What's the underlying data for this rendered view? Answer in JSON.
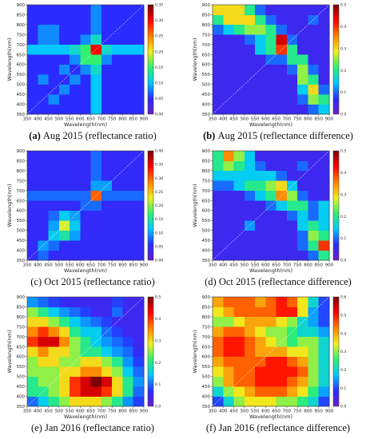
{
  "chart_data": [
    {
      "type": "heatmap",
      "panel_label": "(a)",
      "label_bold": true,
      "caption": "Aug 2015 (reflectance ratio)",
      "x_label": "Wavelength(nm)",
      "y_label": "Wavelength(nm)",
      "xlim": [
        350,
        900
      ],
      "ylim": [
        350,
        900
      ],
      "xticks": [
        350,
        400,
        450,
        500,
        550,
        600,
        650,
        700,
        750,
        800,
        850,
        900
      ],
      "yticks": [
        350,
        400,
        450,
        500,
        550,
        600,
        650,
        700,
        750,
        800,
        850,
        900
      ],
      "zlim": [
        0,
        0.35
      ],
      "zticks": [
        {
          "value": 0,
          "label": "0.00"
        },
        0.05,
        {
          "value": 0.1,
          "label": "0.10"
        },
        0.15,
        {
          "value": 0.2,
          "label": "0.20"
        },
        0.25,
        {
          "value": 0.3,
          "label": "0.30"
        },
        0.35
      ],
      "colormap": [
        "#6a1ec8",
        "#2a2cff",
        "#00c8ff",
        "#30f070",
        "#f0f020",
        "#ff8000",
        "#ff0000",
        "#7a0000"
      ],
      "z": [
        [
          0.05,
          0.05,
          0.05,
          0.05,
          0.05,
          0.05,
          0.1,
          0.05,
          0.05,
          0.05,
          0.05
        ],
        [
          0.05,
          0.05,
          0.08,
          0.05,
          0.05,
          0.05,
          0.1,
          0.05,
          0.05,
          0.05,
          0.05
        ],
        [
          0.05,
          0.05,
          0.05,
          0.08,
          0.05,
          0.05,
          0.1,
          0.05,
          0.05,
          0.05,
          0.05
        ],
        [
          0.05,
          0.08,
          0.05,
          0.05,
          0.08,
          0.05,
          0.1,
          0.05,
          0.05,
          0.05,
          0.05
        ],
        [
          0.05,
          0.05,
          0.05,
          0.08,
          0.05,
          0.08,
          0.12,
          0.05,
          0.05,
          0.05,
          0.05
        ],
        [
          0.05,
          0.05,
          0.05,
          0.05,
          0.08,
          0.15,
          0.15,
          0.08,
          0.05,
          0.05,
          0.05
        ],
        [
          0.1,
          0.1,
          0.1,
          0.1,
          0.12,
          0.15,
          0.3,
          0.12,
          0.1,
          0.1,
          0.1
        ],
        [
          0.05,
          0.08,
          0.08,
          0.05,
          0.05,
          0.08,
          0.12,
          0.05,
          0.05,
          0.05,
          0.05
        ],
        [
          0.05,
          0.08,
          0.08,
          0.05,
          0.05,
          0.05,
          0.08,
          0.05,
          0.05,
          0.05,
          0.05
        ],
        [
          0.05,
          0.05,
          0.05,
          0.05,
          0.05,
          0.05,
          0.08,
          0.05,
          0.05,
          0.05,
          0.05
        ],
        [
          0.05,
          0.05,
          0.05,
          0.05,
          0.05,
          0.05,
          0.08,
          0.05,
          0.05,
          0.05,
          0.05
        ]
      ]
    },
    {
      "type": "heatmap",
      "panel_label": "(b)",
      "label_bold": true,
      "caption": "Aug 2015 (reflectance difference)",
      "x_label": "Wavelength(nm)",
      "y_label": "Wavelength(nm)",
      "xlim": [
        350,
        900
      ],
      "ylim": [
        350,
        900
      ],
      "xticks": [
        350,
        400,
        450,
        500,
        550,
        600,
        650,
        700,
        750,
        800,
        850,
        900
      ],
      "yticks": [
        350,
        400,
        450,
        500,
        550,
        600,
        650,
        700,
        750,
        800,
        850,
        900
      ],
      "zlim": [
        0,
        0.5
      ],
      "zticks": [
        {
          "value": 0,
          "label": "0.0"
        },
        0.1,
        0.2,
        0.3,
        0.4,
        0.5
      ],
      "colormap": [
        "#6a1ec8",
        "#2a2cff",
        "#00c8ff",
        "#30f070",
        "#f0f020",
        "#ff8000",
        "#ff0000",
        "#7a0000"
      ],
      "z": [
        [
          0.05,
          0.05,
          0.05,
          0.05,
          0.05,
          0.05,
          0.05,
          0.05,
          0.05,
          0.1,
          0.15
        ],
        [
          0.05,
          0.05,
          0.05,
          0.05,
          0.05,
          0.05,
          0.05,
          0.05,
          0.1,
          0.25,
          0.2
        ],
        [
          0.05,
          0.05,
          0.05,
          0.05,
          0.05,
          0.05,
          0.05,
          0.05,
          0.15,
          0.3,
          0.1
        ],
        [
          0.05,
          0.05,
          0.05,
          0.05,
          0.05,
          0.05,
          0.05,
          0.05,
          0.25,
          0.2,
          0.05
        ],
        [
          0.05,
          0.05,
          0.05,
          0.05,
          0.05,
          0.05,
          0.05,
          0.1,
          0.25,
          0.1,
          0.05
        ],
        [
          0.05,
          0.05,
          0.05,
          0.05,
          0.05,
          0.1,
          0.1,
          0.2,
          0.2,
          0.05,
          0.05
        ],
        [
          0.05,
          0.05,
          0.05,
          0.05,
          0.15,
          0.2,
          0.4,
          0.2,
          0.05,
          0.05,
          0.05
        ],
        [
          0.05,
          0.05,
          0.05,
          0.1,
          0.15,
          0.2,
          0.45,
          0.1,
          0.05,
          0.05,
          0.05
        ],
        [
          0.1,
          0.15,
          0.2,
          0.25,
          0.25,
          0.2,
          0.1,
          0.05,
          0.05,
          0.05,
          0.05
        ],
        [
          0.2,
          0.3,
          0.3,
          0.3,
          0.2,
          0.1,
          0.05,
          0.05,
          0.05,
          0.1,
          0.05
        ],
        [
          0.3,
          0.3,
          0.3,
          0.2,
          0.1,
          0.05,
          0.05,
          0.05,
          0.05,
          0.05,
          0.05
        ]
      ]
    },
    {
      "type": "heatmap",
      "panel_label": "(c)",
      "label_bold": false,
      "caption": "Oct 2015 (reflectance ratio)",
      "x_label": "Wavelength(nm)",
      "y_label": "Wavelength(nm)",
      "xlim": [
        350,
        900
      ],
      "ylim": [
        350,
        900
      ],
      "xticks": [
        350,
        400,
        450,
        500,
        550,
        600,
        650,
        700,
        750,
        800,
        850,
        900
      ],
      "yticks": [
        350,
        400,
        450,
        500,
        550,
        600,
        650,
        700,
        750,
        800,
        850,
        900
      ],
      "zlim": [
        0,
        0.4
      ],
      "zticks": [
        {
          "value": 0,
          "label": "0.00"
        },
        0.05,
        {
          "value": 0.1,
          "label": "0.10"
        },
        0.15,
        {
          "value": 0.2,
          "label": "0.20"
        },
        0.25,
        {
          "value": 0.3,
          "label": "0.30"
        },
        0.35,
        {
          "value": 0.4,
          "label": "0.40"
        }
      ],
      "colormap": [
        "#6a1ec8",
        "#2a2cff",
        "#00c8ff",
        "#30f070",
        "#f0f020",
        "#ff8000",
        "#ff0000",
        "#7a0000"
      ],
      "z": [
        [
          0.05,
          0.08,
          0.05,
          0.05,
          0.05,
          0.05,
          0.05,
          0.05,
          0.05,
          0.05,
          0.05
        ],
        [
          0.05,
          0.1,
          0.08,
          0.05,
          0.05,
          0.05,
          0.05,
          0.05,
          0.05,
          0.05,
          0.05
        ],
        [
          0.05,
          0.05,
          0.12,
          0.15,
          0.1,
          0.05,
          0.05,
          0.05,
          0.05,
          0.05,
          0.05
        ],
        [
          0.05,
          0.05,
          0.1,
          0.22,
          0.12,
          0.05,
          0.05,
          0.05,
          0.05,
          0.05,
          0.05
        ],
        [
          0.05,
          0.05,
          0.08,
          0.12,
          0.1,
          0.05,
          0.05,
          0.05,
          0.05,
          0.05,
          0.05
        ],
        [
          0.05,
          0.05,
          0.05,
          0.05,
          0.05,
          0.08,
          0.08,
          0.05,
          0.05,
          0.05,
          0.05
        ],
        [
          0.08,
          0.08,
          0.08,
          0.08,
          0.08,
          0.08,
          0.3,
          0.08,
          0.08,
          0.08,
          0.08
        ],
        [
          0.05,
          0.05,
          0.05,
          0.05,
          0.05,
          0.05,
          0.1,
          0.1,
          0.05,
          0.05,
          0.05
        ],
        [
          0.05,
          0.05,
          0.05,
          0.05,
          0.05,
          0.05,
          0.08,
          0.05,
          0.05,
          0.05,
          0.05
        ],
        [
          0.05,
          0.05,
          0.05,
          0.05,
          0.05,
          0.05,
          0.08,
          0.05,
          0.05,
          0.05,
          0.05
        ],
        [
          0.05,
          0.05,
          0.05,
          0.05,
          0.05,
          0.05,
          0.08,
          0.05,
          0.05,
          0.05,
          0.05
        ]
      ]
    },
    {
      "type": "heatmap",
      "panel_label": "(d)",
      "label_bold": false,
      "caption": "Oct 2015 (reflectance difference)",
      "x_label": "Wavelength(nm)",
      "y_label": "Wavelength(nm)",
      "xlim": [
        350,
        900
      ],
      "ylim": [
        350,
        900
      ],
      "xticks": [
        350,
        400,
        450,
        500,
        550,
        600,
        650,
        700,
        750,
        800,
        850,
        900
      ],
      "yticks": [
        350,
        400,
        450,
        500,
        550,
        600,
        650,
        700,
        750,
        800,
        850,
        900
      ],
      "zlim": [
        0,
        0.5
      ],
      "zticks": [
        {
          "value": 0,
          "label": "0.0"
        },
        0.1,
        0.2,
        0.3,
        0.4,
        0.5
      ],
      "colormap": [
        "#6a1ec8",
        "#2a2cff",
        "#00c8ff",
        "#30f070",
        "#f0f020",
        "#ff8000",
        "#ff0000",
        "#7a0000"
      ],
      "z": [
        [
          0.05,
          0.05,
          0.05,
          0.05,
          0.05,
          0.05,
          0.05,
          0.05,
          0.05,
          0.1,
          0.2
        ],
        [
          0.05,
          0.05,
          0.05,
          0.05,
          0.05,
          0.05,
          0.05,
          0.05,
          0.1,
          0.2,
          0.4
        ],
        [
          0.05,
          0.05,
          0.05,
          0.05,
          0.05,
          0.05,
          0.05,
          0.05,
          0.1,
          0.25,
          0.2
        ],
        [
          0.05,
          0.05,
          0.05,
          0.12,
          0.05,
          0.05,
          0.05,
          0.05,
          0.15,
          0.2,
          0.15
        ],
        [
          0.05,
          0.05,
          0.05,
          0.05,
          0.05,
          0.05,
          0.05,
          0.1,
          0.15,
          0.1,
          0.15
        ],
        [
          0.05,
          0.05,
          0.05,
          0.05,
          0.05,
          0.1,
          0.15,
          0.2,
          0.2,
          0.1,
          0.15
        ],
        [
          0.05,
          0.05,
          0.05,
          0.1,
          0.15,
          0.2,
          0.35,
          0.25,
          0.1,
          0.05,
          0.05
        ],
        [
          0.1,
          0.1,
          0.15,
          0.2,
          0.2,
          0.25,
          0.3,
          0.15,
          0.05,
          0.05,
          0.05
        ],
        [
          0.15,
          0.15,
          0.15,
          0.15,
          0.15,
          0.15,
          0.1,
          0.05,
          0.05,
          0.05,
          0.05
        ],
        [
          0.2,
          0.25,
          0.2,
          0.15,
          0.1,
          0.05,
          0.05,
          0.05,
          0.1,
          0.05,
          0.05
        ],
        [
          0.2,
          0.35,
          0.25,
          0.15,
          0.05,
          0.05,
          0.05,
          0.05,
          0.05,
          0.05,
          0.05
        ]
      ]
    },
    {
      "type": "heatmap",
      "panel_label": "(e)",
      "label_bold": false,
      "caption": "Jan 2016 (reflectance ratio)",
      "x_label": "Wavelength(nm)",
      "y_label": "Wavelength(nm)",
      "xlim": [
        350,
        900
      ],
      "ylim": [
        350,
        900
      ],
      "xticks": [
        350,
        400,
        450,
        500,
        550,
        600,
        650,
        700,
        750,
        800,
        850,
        900
      ],
      "yticks": [
        350,
        400,
        450,
        500,
        550,
        600,
        650,
        700,
        750,
        800,
        850,
        900
      ],
      "zlim": [
        0,
        0.5
      ],
      "zticks": [
        {
          "value": 0,
          "label": "0.0"
        },
        0.1,
        0.2,
        0.3,
        0.4,
        0.5
      ],
      "colormap": [
        "#6a1ec8",
        "#2a2cff",
        "#00c8ff",
        "#30f070",
        "#f0f020",
        "#ff8000",
        "#ff0000",
        "#7a0000"
      ],
      "z": [
        [
          0.1,
          0.15,
          0.2,
          0.25,
          0.3,
          0.3,
          0.3,
          0.25,
          0.2,
          0.12,
          0.08
        ],
        [
          0.2,
          0.2,
          0.25,
          0.3,
          0.4,
          0.45,
          0.45,
          0.4,
          0.3,
          0.2,
          0.1
        ],
        [
          0.2,
          0.25,
          0.25,
          0.3,
          0.4,
          0.45,
          0.5,
          0.45,
          0.3,
          0.2,
          0.12
        ],
        [
          0.25,
          0.25,
          0.25,
          0.3,
          0.3,
          0.35,
          0.35,
          0.3,
          0.25,
          0.15,
          0.1
        ],
        [
          0.25,
          0.3,
          0.3,
          0.25,
          0.25,
          0.3,
          0.3,
          0.25,
          0.2,
          0.12,
          0.08
        ],
        [
          0.3,
          0.35,
          0.3,
          0.3,
          0.25,
          0.2,
          0.2,
          0.15,
          0.12,
          0.1,
          0.06
        ],
        [
          0.4,
          0.45,
          0.45,
          0.35,
          0.25,
          0.2,
          0.15,
          0.12,
          0.1,
          0.08,
          0.05
        ],
        [
          0.35,
          0.4,
          0.35,
          0.3,
          0.2,
          0.15,
          0.15,
          0.1,
          0.08,
          0.05,
          0.05
        ],
        [
          0.3,
          0.3,
          0.25,
          0.2,
          0.15,
          0.12,
          0.1,
          0.08,
          0.05,
          0.05,
          0.05
        ],
        [
          0.25,
          0.2,
          0.15,
          0.12,
          0.1,
          0.08,
          0.05,
          0.05,
          0.1,
          0.05,
          0.05
        ],
        [
          0.12,
          0.1,
          0.08,
          0.06,
          0.05,
          0.05,
          0.05,
          0.05,
          0.08,
          0.05,
          0.05
        ]
      ]
    },
    {
      "type": "heatmap",
      "panel_label": "(f)",
      "label_bold": false,
      "caption": "Jan 2016 (reflectance difference)",
      "x_label": "Wavelength(nm)",
      "y_label": "Wavelength(nm)",
      "xlim": [
        350,
        900
      ],
      "ylim": [
        350,
        900
      ],
      "xticks": [
        350,
        400,
        450,
        500,
        550,
        600,
        650,
        700,
        750,
        800,
        850,
        900
      ],
      "yticks": [
        350,
        400,
        450,
        500,
        550,
        600,
        650,
        700,
        750,
        800,
        850,
        900
      ],
      "zlim": [
        0,
        0.6
      ],
      "zticks": [
        {
          "value": 0,
          "label": "0.0"
        },
        0.1,
        0.2,
        0.3,
        0.4,
        0.5,
        0.6
      ],
      "colormap": [
        "#6a1ec8",
        "#2a2cff",
        "#00c8ff",
        "#30f070",
        "#f0f020",
        "#ff8000",
        "#ff0000",
        "#7a0000"
      ],
      "z": [
        [
          0.1,
          0.2,
          0.3,
          0.35,
          0.35,
          0.35,
          0.3,
          0.3,
          0.25,
          0.2,
          0.1
        ],
        [
          0.2,
          0.3,
          0.35,
          0.4,
          0.45,
          0.45,
          0.45,
          0.4,
          0.35,
          0.25,
          0.15
        ],
        [
          0.3,
          0.4,
          0.45,
          0.45,
          0.5,
          0.5,
          0.5,
          0.45,
          0.4,
          0.3,
          0.2
        ],
        [
          0.35,
          0.4,
          0.45,
          0.45,
          0.5,
          0.5,
          0.5,
          0.5,
          0.45,
          0.3,
          0.2
        ],
        [
          0.4,
          0.45,
          0.45,
          0.45,
          0.45,
          0.5,
          0.5,
          0.45,
          0.4,
          0.3,
          0.2
        ],
        [
          0.45,
          0.5,
          0.5,
          0.45,
          0.4,
          0.4,
          0.4,
          0.35,
          0.35,
          0.3,
          0.2
        ],
        [
          0.45,
          0.5,
          0.5,
          0.45,
          0.4,
          0.35,
          0.3,
          0.25,
          0.3,
          0.3,
          0.2
        ],
        [
          0.4,
          0.45,
          0.45,
          0.4,
          0.35,
          0.3,
          0.3,
          0.25,
          0.2,
          0.2,
          0.15
        ],
        [
          0.3,
          0.3,
          0.35,
          0.4,
          0.4,
          0.4,
          0.35,
          0.3,
          0.2,
          0.15,
          0.1
        ],
        [
          0.35,
          0.4,
          0.45,
          0.45,
          0.45,
          0.45,
          0.5,
          0.5,
          0.35,
          0.15,
          0.1
        ],
        [
          0.4,
          0.45,
          0.45,
          0.45,
          0.4,
          0.45,
          0.5,
          0.45,
          0.35,
          0.2,
          0.1
        ]
      ]
    }
  ]
}
